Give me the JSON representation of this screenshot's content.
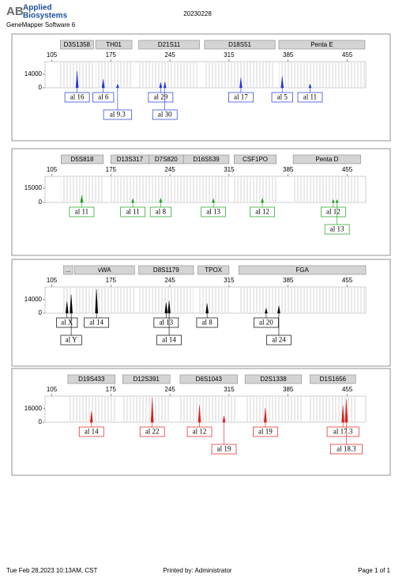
{
  "header": {
    "logo_mark": "AB",
    "logo_line1": "Applied",
    "logo_line2": "Biosystems",
    "software": "GeneMapper Software 6",
    "sample": "20230228"
  },
  "footer": {
    "timestamp": "Tue Feb 28,2023 10:13AM, CST",
    "printed_by": "Printed by: Administrator",
    "page": "Page 1 of 1"
  },
  "chart_data": [
    {
      "type": "peak",
      "color": "#1f35d8",
      "xlim": [
        97,
        477
      ],
      "xticks": [
        105,
        175,
        245,
        315,
        385,
        455
      ],
      "ylim": [
        0,
        27000
      ],
      "yticks": [
        0,
        14000
      ],
      "markers": [
        {
          "name": "D3S1358",
          "range": [
            115,
            154.5
          ]
        },
        {
          "name": "TH01",
          "range": [
            157,
            200
          ]
        },
        {
          "name": "D21S11",
          "range": [
            208,
            280
          ]
        },
        {
          "name": "D18S51",
          "range": [
            286,
            369.5
          ]
        },
        {
          "name": "Penta E",
          "range": [
            374,
            476
          ]
        }
      ],
      "x": [
        135,
        166,
        183,
        234,
        239,
        329,
        378,
        411
      ],
      "values": [
        17000,
        9000,
        4000,
        5500,
        6000,
        10500,
        12000,
        4000
      ],
      "labels": [
        "al 16",
        "al 6",
        "al 9.3",
        "al 29",
        "al 30",
        "al 17",
        "al 5",
        "al 11"
      ]
    },
    {
      "type": "peak",
      "color": "#1a9e1a",
      "xlim": [
        97,
        477
      ],
      "xticks": [
        105,
        175,
        245,
        315,
        385,
        455
      ],
      "ylim": [
        0,
        27500
      ],
      "yticks": [
        0,
        15000
      ],
      "markers": [
        {
          "name": "D5S818",
          "range": [
            116,
            166
          ]
        },
        {
          "name": "D13S317",
          "range": [
            175,
            220
          ]
        },
        {
          "name": "D7S820",
          "range": [
            220,
            261
          ]
        },
        {
          "name": "D16S539",
          "range": [
            261,
            315
          ]
        },
        {
          "name": "CSF1PO",
          "range": [
            321,
            371
          ]
        },
        {
          "name": "Penta D",
          "range": [
            391,
            471
          ]
        }
      ],
      "x": [
        140.5,
        201,
        234,
        296.5,
        354.5,
        438.5,
        443
      ],
      "values": [
        7500,
        4000,
        4500,
        4000,
        4500,
        3000,
        3000
      ],
      "labels": [
        "al 11",
        "al 11",
        "al 8",
        "al 13",
        "al 12",
        "al 12",
        "al 13"
      ]
    },
    {
      "type": "peak",
      "color": "#000000",
      "xlim": [
        97,
        477
      ],
      "xticks": [
        105,
        175,
        245,
        315,
        385,
        455
      ],
      "ylim": [
        0,
        27000
      ],
      "yticks": [
        0,
        14000
      ],
      "markers": [
        {
          "name": "...",
          "range": [
            119,
            130
          ]
        },
        {
          "name": "vWA",
          "range": [
            132,
            203
          ]
        },
        {
          "name": "D8S1179",
          "range": [
            208,
            273
          ]
        },
        {
          "name": "TPOX",
          "range": [
            278,
            315
          ]
        },
        {
          "name": "FGA",
          "range": [
            326.5,
            477
          ]
        }
      ],
      "x": [
        123,
        128,
        158,
        240.5,
        244,
        289,
        359,
        374
      ],
      "values": [
        12000,
        19000,
        24500,
        11000,
        12500,
        10000,
        5000,
        7500
      ],
      "labels": [
        "al X",
        "al Y",
        "al 14",
        "al 13",
        "al 14",
        "al 8",
        "al 20",
        "al 24"
      ]
    },
    {
      "type": "peak",
      "color": "#e01a1a",
      "xlim": [
        97,
        477
      ],
      "xticks": [
        105,
        175,
        245,
        315,
        385,
        455
      ],
      "ylim": [
        0,
        31000
      ],
      "yticks": [
        0,
        16000
      ],
      "markers": [
        {
          "name": "D19S433",
          "range": [
            124,
            180
          ]
        },
        {
          "name": "D12S391",
          "range": [
            189,
            245
          ]
        },
        {
          "name": "D6S1043",
          "range": [
            257,
            325
          ]
        },
        {
          "name": "D2S1338",
          "range": [
            334,
            401
          ]
        },
        {
          "name": "D1S1656",
          "range": [
            411,
            465
          ]
        }
      ],
      "x": [
        152,
        224,
        280,
        309,
        358,
        450,
        454
      ],
      "values": [
        13000,
        29000,
        20000,
        7500,
        17000,
        20000,
        27000
      ],
      "labels": [
        "al 14",
        "al 22",
        "al 12",
        "al 19",
        "al 19",
        "al 17.3",
        "al 18.3"
      ]
    }
  ]
}
